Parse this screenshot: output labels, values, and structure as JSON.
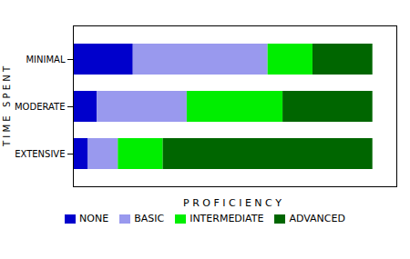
{
  "chart_data": {
    "type": "bar",
    "orientation": "horizontal",
    "stacked": true,
    "categories": [
      "EXTENSIVE",
      "MODERATE",
      "MINIMAL"
    ],
    "series": [
      {
        "name": "NONE",
        "color": "#0000CC",
        "values": [
          0.05,
          0.08,
          0.2
        ]
      },
      {
        "name": "BASIC",
        "color": "#9999EE",
        "values": [
          0.1,
          0.3,
          0.45
        ]
      },
      {
        "name": "INTERMEDIATE",
        "color": "#00EE00",
        "values": [
          0.15,
          0.32,
          0.15
        ]
      },
      {
        "name": "ADVANCED",
        "color": "#006600",
        "values": [
          0.7,
          0.3,
          0.2
        ]
      }
    ],
    "xlabel": "P R O F I C I E N C Y",
    "ylabel": "T I M E   S P E N T",
    "xlim": [
      0,
      1.08
    ],
    "tick_labels": "y",
    "grid": false,
    "legend": "bottom"
  }
}
